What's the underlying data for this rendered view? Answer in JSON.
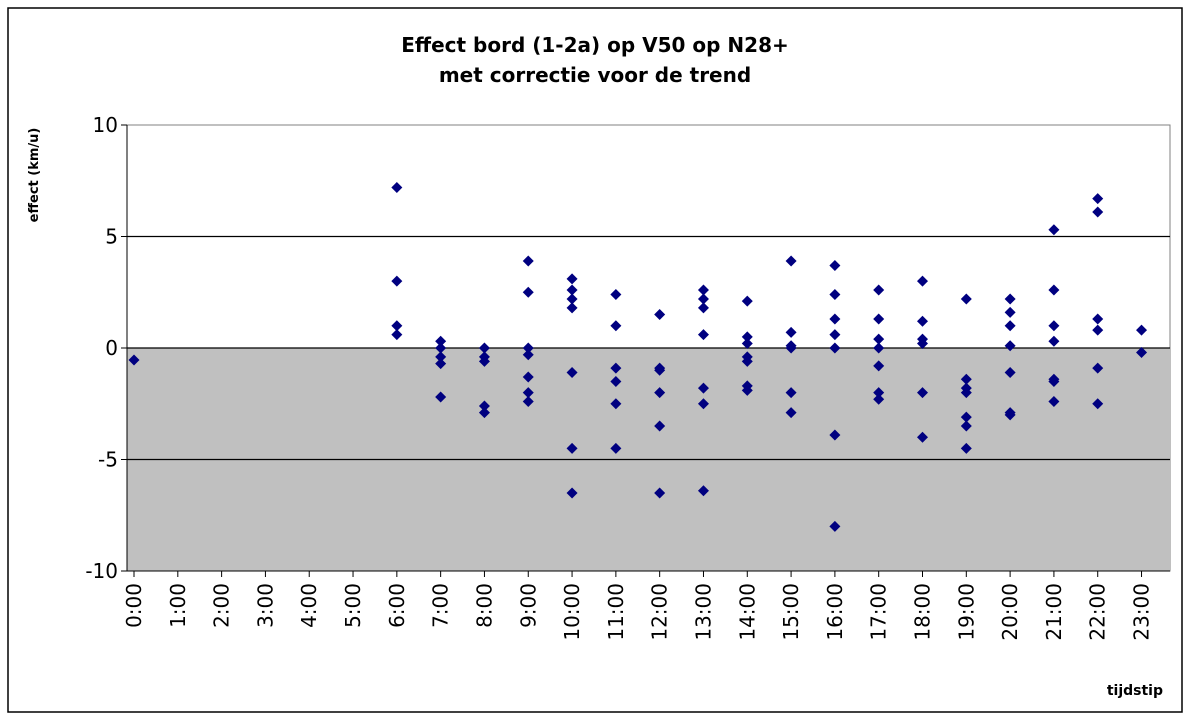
{
  "chart_data": {
    "type": "scatter",
    "title": [
      "Effect bord (1-2a) op V50 op N28+",
      "met correctie voor de trend"
    ],
    "y_label": "effect (km/u)",
    "x_label": "tijdstip",
    "xlim": [
      -0.16,
      23.65
    ],
    "xticks": [
      {
        "value": 0,
        "label": "0:00"
      },
      {
        "value": 1,
        "label": "1:00"
      },
      {
        "value": 2,
        "label": "2:00"
      },
      {
        "value": 3,
        "label": "3:00"
      },
      {
        "value": 4,
        "label": "4:00"
      },
      {
        "value": 5,
        "label": "5:00"
      },
      {
        "value": 6,
        "label": "6:00"
      },
      {
        "value": 7,
        "label": "7:00"
      },
      {
        "value": 8,
        "label": "8:00"
      },
      {
        "value": 9,
        "label": "9:00"
      },
      {
        "value": 10,
        "label": "10:00"
      },
      {
        "value": 11,
        "label": "11:00"
      },
      {
        "value": 12,
        "label": "12:00"
      },
      {
        "value": 13,
        "label": "13:00"
      },
      {
        "value": 14,
        "label": "14:00"
      },
      {
        "value": 15,
        "label": "15:00"
      },
      {
        "value": 16,
        "label": "16:00"
      },
      {
        "value": 17,
        "label": "17:00"
      },
      {
        "value": 18,
        "label": "18:00"
      },
      {
        "value": 19,
        "label": "19:00"
      },
      {
        "value": 20,
        "label": "20:00"
      },
      {
        "value": 21,
        "label": "21:00"
      },
      {
        "value": 22,
        "label": "22:00"
      },
      {
        "value": 23,
        "label": "23:00"
      }
    ],
    "ylim": [
      -10,
      10
    ],
    "yticks": [
      -10,
      -5,
      0,
      5,
      10
    ],
    "grid": true,
    "color": "#000080",
    "x": [
      0,
      6,
      6,
      6,
      6,
      7,
      7,
      7,
      7,
      7,
      8,
      8,
      8,
      8,
      8,
      9,
      9,
      9,
      9,
      9,
      9,
      9,
      10,
      10,
      10,
      10,
      10,
      10,
      10,
      11,
      11,
      11,
      11,
      11,
      11,
      12,
      12,
      12,
      12,
      12,
      12,
      13,
      13,
      13,
      13,
      13,
      13,
      13,
      14,
      14,
      14,
      14,
      14,
      14,
      14,
      15,
      15,
      15,
      15,
      15,
      15,
      16,
      16,
      16,
      16,
      16,
      16,
      16,
      17,
      17,
      17,
      17,
      17,
      17,
      17,
      18,
      18,
      18,
      18,
      18,
      18,
      19,
      19,
      19,
      19,
      19,
      19,
      19,
      20,
      20,
      20,
      20,
      20,
      20,
      20,
      21,
      21,
      21,
      21,
      21,
      21,
      21,
      22,
      22,
      22,
      22,
      22,
      22,
      23,
      23
    ],
    "y": [
      -0.54,
      7.2,
      3.0,
      1.0,
      0.6,
      0.3,
      0,
      -0.4,
      -0.7,
      -2.2,
      0,
      -0.4,
      -0.6,
      -2.6,
      -2.9,
      3.9,
      2.5,
      0,
      -0.3,
      -1.3,
      -2.0,
      -2.4,
      3.1,
      2.6,
      2.2,
      1.8,
      -1.1,
      -4.5,
      -6.5,
      2.4,
      1.0,
      -0.9,
      -1.5,
      -2.5,
      -4.5,
      1.5,
      -0.9,
      -1.0,
      -2.0,
      -3.5,
      -6.5,
      2.6,
      2.2,
      1.8,
      0.6,
      -1.8,
      -2.5,
      -6.4,
      2.1,
      0.5,
      0.2,
      -0.4,
      -0.6,
      -1.7,
      -1.9,
      3.9,
      0.7,
      0.1,
      0,
      -2.0,
      -2.9,
      3.7,
      2.4,
      1.3,
      0.6,
      0,
      -3.9,
      -8.0,
      2.6,
      1.3,
      0.4,
      0,
      -0.8,
      -2.0,
      -2.3,
      3.0,
      1.2,
      0.4,
      0.2,
      -2.0,
      -4.0,
      2.2,
      -1.4,
      -1.8,
      -2.0,
      -3.1,
      -3.5,
      -4.5,
      2.2,
      1.6,
      1.0,
      0.1,
      -1.1,
      -2.9,
      -3.0,
      5.3,
      2.6,
      1.0,
      0.3,
      -1.4,
      -1.5,
      -2.4,
      6.7,
      6.1,
      1.3,
      0.8,
      -0.9,
      -2.5,
      0.8,
      -0.2
    ]
  }
}
